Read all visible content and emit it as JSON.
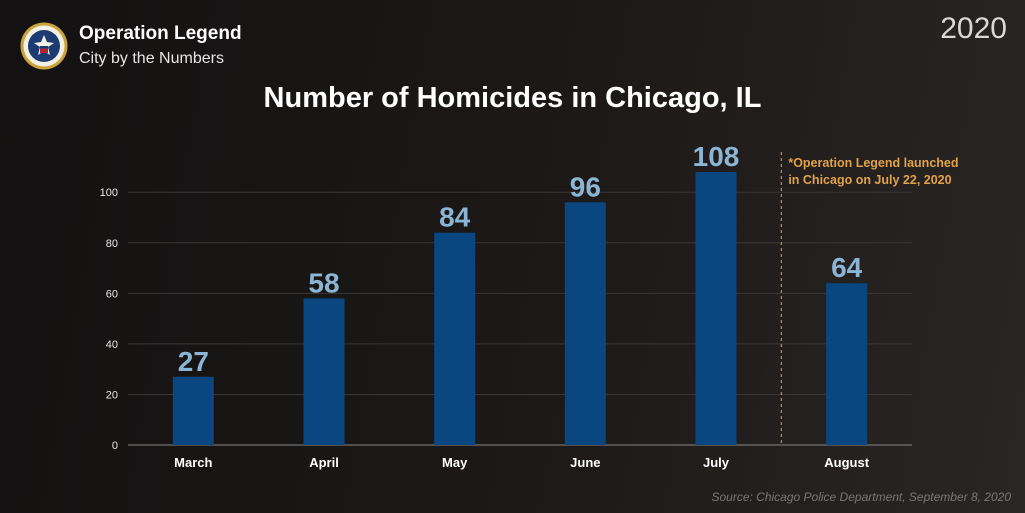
{
  "header": {
    "brand_title": "Operation Legend",
    "brand_subtitle": "City by the Numbers",
    "year": "2020",
    "seal_icon": "doj-seal-icon"
  },
  "chart_data": {
    "type": "bar",
    "title": "Number of Homicides in Chicago, IL",
    "categories": [
      "March",
      "April",
      "May",
      "June",
      "July",
      "August"
    ],
    "values": [
      27,
      58,
      84,
      96,
      108,
      64
    ],
    "value_labels": [
      "27",
      "58",
      "84",
      "96",
      "108",
      "64"
    ],
    "ylim": [
      0,
      108
    ],
    "yticks": [
      0,
      20,
      40,
      60,
      80,
      100
    ],
    "ytick_labels": [
      "0",
      "20",
      "40",
      "60",
      "80",
      "100"
    ],
    "xlabel": "",
    "ylabel": "",
    "grid": true,
    "annotation": {
      "lines": [
        "*Operation Legend launched",
        "in Chicago on July 22, 2020"
      ],
      "between": [
        "July",
        "August"
      ]
    },
    "colors": {
      "bar": "#0a4780",
      "value_label": "#8bb5d4",
      "annotation": "#e0a247",
      "grid": "#3a3634",
      "axis": "#8a8682"
    }
  },
  "footer": {
    "source": "Source: Chicago Police Department, September 8, 2020"
  }
}
